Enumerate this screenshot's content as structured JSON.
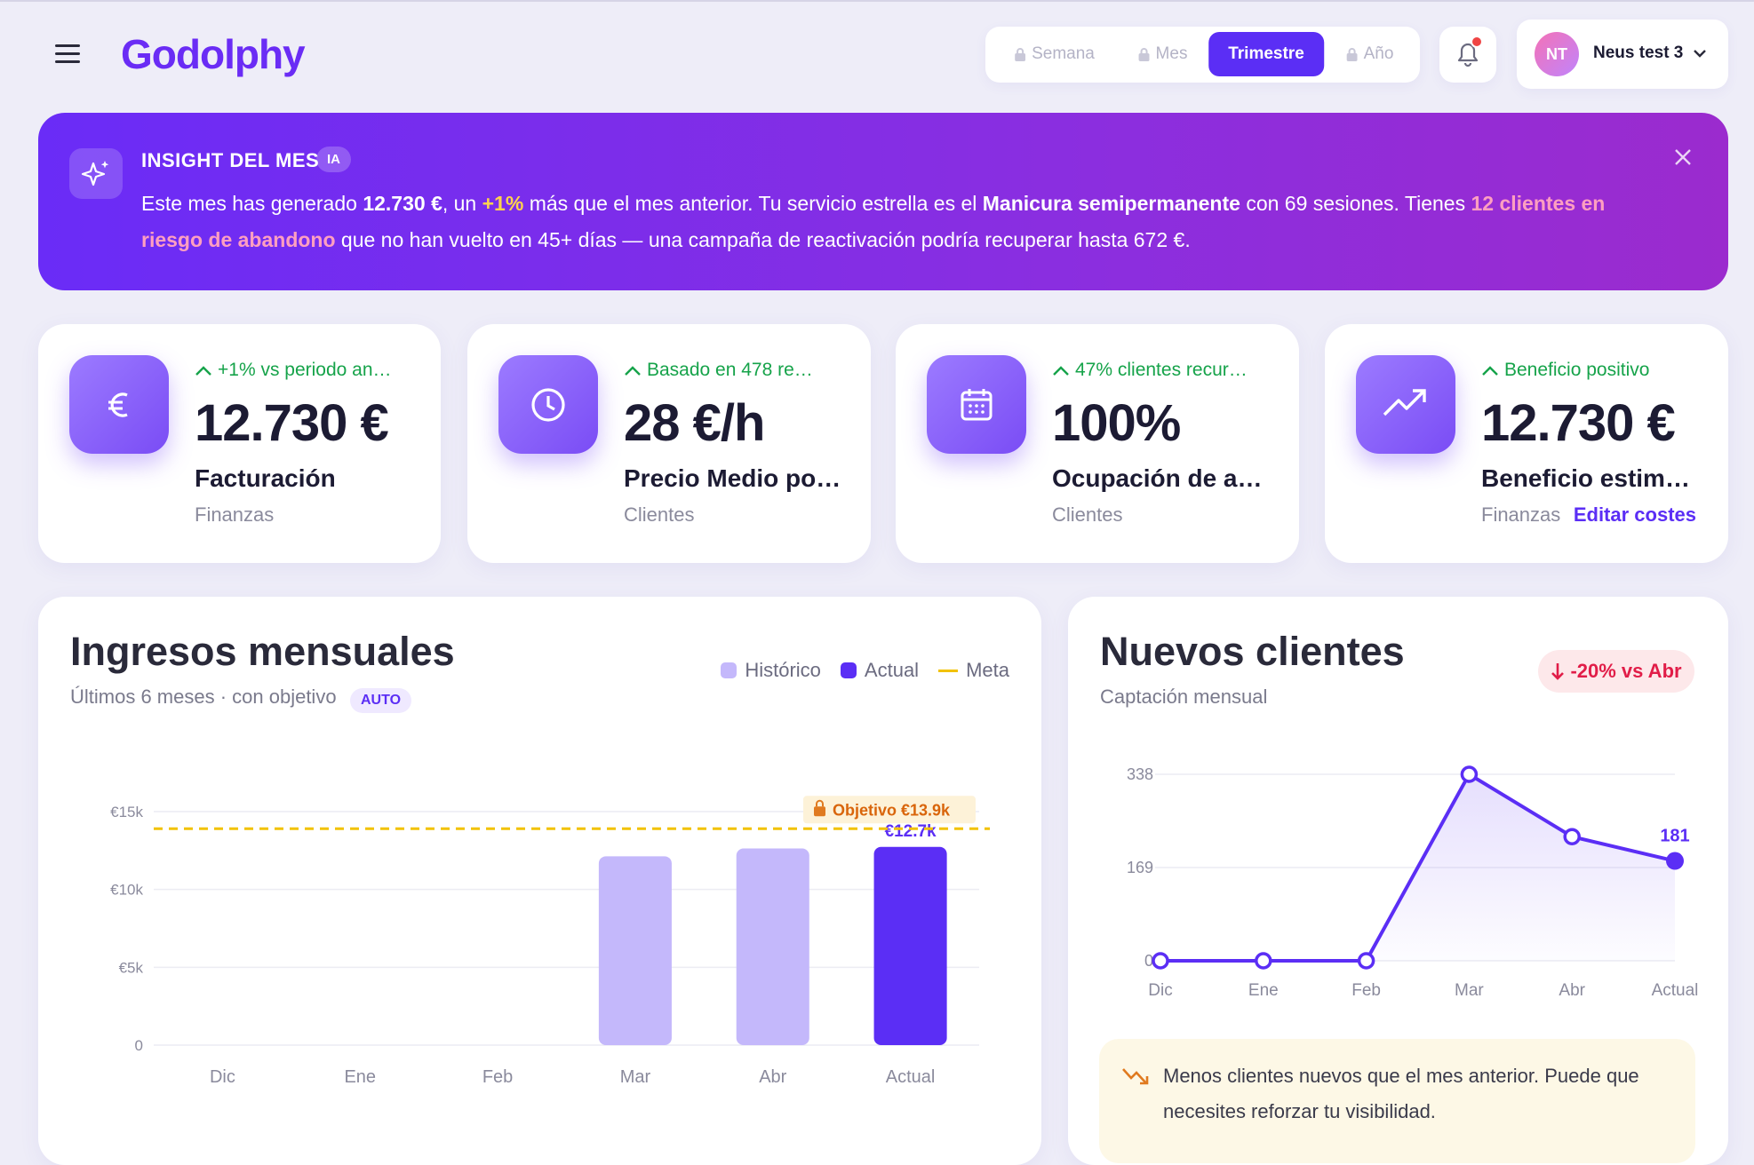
{
  "header": {
    "logo": "Godolphy",
    "periods": [
      "Semana",
      "Mes",
      "Trimestre",
      "Año"
    ],
    "active_period": "Trimestre",
    "user_initials": "NT",
    "user_name": "Neus test 3"
  },
  "insight": {
    "title": "INSIGHT DEL MES",
    "badge": "IA",
    "text": [
      {
        "text": "Este mes has generado ",
        "style": "plain"
      },
      {
        "text": "12.730 €",
        "style": "bold"
      },
      {
        "text": ", un ",
        "style": "plain"
      },
      {
        "text": "+1%",
        "style": "yellow"
      },
      {
        "text": " más que el mes anterior. Tu servicio estrella es el ",
        "style": "plain"
      },
      {
        "text": "Manicura semipermanente",
        "style": "bold"
      },
      {
        "text": " con 69 sesiones. Tienes ",
        "style": "plain"
      },
      {
        "text": "12 clientes en riesgo de abandono",
        "style": "pink"
      },
      {
        "text": " que no han vuelto en 45+ días — una campaña de reactivación podría recuperar hasta 672 €.",
        "style": "plain"
      }
    ]
  },
  "kpis": [
    {
      "trend": "+1% vs periodo an…",
      "value": "12.730 €",
      "label": "Facturación",
      "category": "Finanzas"
    },
    {
      "trend": "Basado en 478 re…",
      "value": "28 €/h",
      "label": "Precio Medio po…",
      "category": "Clientes"
    },
    {
      "trend": "47% clientes recur…",
      "value": "100%",
      "label": "Ocupación de a…",
      "category": "Clientes"
    },
    {
      "trend": "Beneficio positivo",
      "value": "12.730 €",
      "label": "Beneficio estim…",
      "category": "Finanzas",
      "link": "Editar costes"
    }
  ],
  "revenue_chart": {
    "type": "bar",
    "title": "Ingresos mensuales",
    "subtitle": "Últimos 6 meses · con objetivo",
    "badge": "AUTO",
    "categories": [
      "Dic",
      "Ene",
      "Feb",
      "Mar",
      "Abr",
      "Actual"
    ],
    "series": [
      {
        "name": "Histórico",
        "color": "#c4b8fb",
        "values": [
          0,
          0,
          0,
          12130,
          12630,
          null
        ]
      },
      {
        "name": "Actual",
        "color": "#5b2ef5",
        "values": [
          null,
          null,
          null,
          null,
          null,
          12730
        ],
        "value_labels": [
          null,
          null,
          null,
          null,
          null,
          "€12.7k"
        ]
      },
      {
        "name": "Meta",
        "color": "#f2c200",
        "value": 13900,
        "label": "Objetivo €13.9k"
      }
    ],
    "ylim": [
      0,
      15000
    ],
    "yticks": [
      0,
      {
        "value": 5000,
        "label": "€5k"
      },
      {
        "value": 10000,
        "label": "€10k"
      },
      {
        "value": 15000,
        "label": "€15k"
      }
    ],
    "grid": true
  },
  "clients_chart": {
    "type": "line",
    "title": "Nuevos clientes",
    "subtitle": "Captación mensual",
    "badge": "-20% vs Abr",
    "categories": [
      "Dic",
      "Ene",
      "Feb",
      "Mar",
      "Abr",
      "Actual"
    ],
    "series": [
      {
        "name": "Nuevos clientes",
        "color": "#5b2ef5",
        "values": [
          0,
          0,
          0,
          338,
          225,
          181
        ]
      }
    ],
    "ylim": [
      0,
      338
    ],
    "yticks": [
      0,
      169,
      338
    ],
    "grid": true,
    "note": "Menos clientes nuevos que el mes anterior. Puede que necesites reforzar tu visibilidad."
  }
}
